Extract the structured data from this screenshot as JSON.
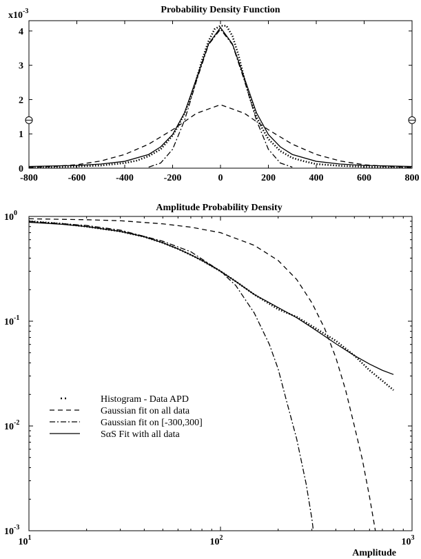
{
  "chart_data": [
    {
      "type": "line",
      "title": "Probability Density Function",
      "multiplier_label": "x10",
      "multiplier_exp": "-3",
      "xlim": [
        -800,
        800
      ],
      "ylim": [
        0,
        4.3
      ],
      "x_ticks": [
        -800,
        -600,
        -400,
        -200,
        0,
        200,
        400,
        600,
        800
      ],
      "x_tick_labels": [
        "-800",
        "-600",
        "-400",
        "-200",
        "0",
        "200",
        "400",
        "600",
        "800"
      ],
      "y_ticks": [
        0,
        1,
        2,
        3,
        4
      ],
      "y_tick_labels": [
        "0",
        "1",
        "2",
        "3",
        "4"
      ],
      "edge_markers": {
        "x": [
          -800,
          800
        ],
        "y": 1.4
      },
      "series": [
        {
          "style": "dotted",
          "x": [
            -800,
            -700,
            -600,
            -500,
            -400,
            -350,
            -300,
            -250,
            -200,
            -175,
            -150,
            -125,
            -100,
            -75,
            -50,
            -25,
            0,
            25,
            50,
            75,
            100,
            125,
            150,
            175,
            200,
            250,
            300,
            350,
            400,
            500,
            600,
            700,
            800
          ],
          "y": [
            0.02,
            0.03,
            0.05,
            0.08,
            0.15,
            0.22,
            0.35,
            0.55,
            0.95,
            1.25,
            1.6,
            2.05,
            2.6,
            3.2,
            3.7,
            4.05,
            4.15,
            4.15,
            3.85,
            3.3,
            2.6,
            2.0,
            1.5,
            1.15,
            0.85,
            0.5,
            0.3,
            0.2,
            0.12,
            0.07,
            0.04,
            0.03,
            0.02
          ]
        },
        {
          "style": "dashed",
          "x": [
            -800,
            -700,
            -600,
            -500,
            -400,
            -300,
            -200,
            -100,
            0,
            100,
            200,
            300,
            400,
            500,
            600,
            700,
            800
          ],
          "y": [
            0.02,
            0.05,
            0.1,
            0.21,
            0.4,
            0.7,
            1.12,
            1.6,
            1.85,
            1.6,
            1.12,
            0.7,
            0.4,
            0.21,
            0.1,
            0.05,
            0.02
          ]
        },
        {
          "style": "dashdot",
          "x": [
            -300,
            -250,
            -200,
            -150,
            -100,
            -50,
            0,
            50,
            100,
            150,
            200,
            250,
            300
          ],
          "y": [
            0.03,
            0.15,
            0.55,
            1.4,
            2.55,
            3.6,
            4.05,
            3.6,
            2.55,
            1.4,
            0.55,
            0.15,
            0.03
          ]
        },
        {
          "style": "solid",
          "x": [
            -800,
            -600,
            -500,
            -400,
            -300,
            -250,
            -200,
            -150,
            -100,
            -50,
            0,
            50,
            100,
            150,
            200,
            250,
            300,
            400,
            500,
            600,
            800
          ],
          "y": [
            0.05,
            0.08,
            0.12,
            0.2,
            0.4,
            0.62,
            0.98,
            1.62,
            2.62,
            3.62,
            4.1,
            3.62,
            2.62,
            1.62,
            0.98,
            0.62,
            0.4,
            0.2,
            0.12,
            0.08,
            0.05
          ]
        }
      ]
    },
    {
      "type": "line",
      "title": "Amplitude Probability Density",
      "xlabel": "Amplitude",
      "xscale": "log",
      "yscale": "log",
      "xlim": [
        10,
        1000
      ],
      "ylim": [
        0.001,
        1
      ],
      "x_ticks": [
        10,
        100,
        1000
      ],
      "x_tick_base": "10",
      "x_tick_exps": [
        "1",
        "2",
        "3"
      ],
      "y_ticks": [
        0.001,
        0.01,
        0.1,
        1
      ],
      "y_tick_base": "10",
      "y_tick_exps": [
        "-3",
        "-2",
        "-1",
        "0"
      ],
      "legend": {
        "position": "lower-left",
        "entries": [
          {
            "label": "Histogram - Data APD",
            "style": "dotted"
          },
          {
            "label": "Gaussian fit on all data",
            "style": "dashed"
          },
          {
            "label": "Gaussian fit on [-300,300]",
            "style": "dashdot"
          },
          {
            "label": "SαS Fit with all data",
            "style": "solid"
          }
        ]
      },
      "series": [
        {
          "style": "dotted",
          "x": [
            10,
            15,
            20,
            30,
            40,
            50,
            60,
            70,
            80,
            100,
            120,
            150,
            200,
            250,
            300,
            400,
            500,
            600,
            700,
            800
          ],
          "y": [
            0.9,
            0.85,
            0.8,
            0.72,
            0.64,
            0.56,
            0.49,
            0.43,
            0.38,
            0.3,
            0.24,
            0.18,
            0.13,
            0.11,
            0.09,
            0.065,
            0.047,
            0.034,
            0.027,
            0.022
          ]
        },
        {
          "style": "dashed",
          "x": [
            10,
            20,
            30,
            50,
            70,
            100,
            150,
            200,
            250,
            300,
            350,
            400,
            450,
            500,
            550,
            600,
            650,
            700
          ],
          "y": [
            0.95,
            0.93,
            0.91,
            0.85,
            0.79,
            0.7,
            0.53,
            0.38,
            0.25,
            0.15,
            0.085,
            0.045,
            0.022,
            0.01,
            0.0048,
            0.0021,
            0.0009,
            0.00035
          ]
        },
        {
          "style": "dashdot",
          "x": [
            10,
            20,
            30,
            50,
            70,
            100,
            120,
            150,
            180,
            200,
            220,
            250,
            280,
            300,
            320
          ],
          "y": [
            0.9,
            0.82,
            0.74,
            0.58,
            0.46,
            0.3,
            0.22,
            0.12,
            0.06,
            0.035,
            0.018,
            0.0075,
            0.0028,
            0.0013,
            0.0005
          ]
        },
        {
          "style": "solid",
          "x": [
            10,
            15,
            20,
            30,
            40,
            50,
            60,
            70,
            80,
            100,
            120,
            150,
            200,
            250,
            300,
            400,
            500,
            600,
            700,
            800
          ],
          "y": [
            0.88,
            0.84,
            0.8,
            0.72,
            0.64,
            0.56,
            0.49,
            0.43,
            0.38,
            0.3,
            0.24,
            0.18,
            0.135,
            0.108,
            0.087,
            0.061,
            0.047,
            0.039,
            0.034,
            0.031
          ]
        }
      ]
    }
  ]
}
